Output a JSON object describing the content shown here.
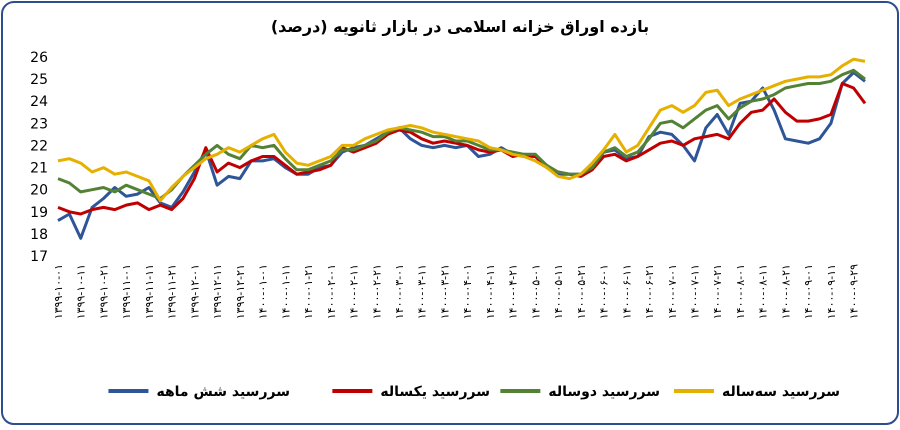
{
  "chart_data": {
    "type": "line",
    "title": "بازده اوراق خزانه اسلامی در بازار ثانویه (درصد)",
    "categories": [
      "۱۳۹۹-۱۰-۰۱",
      null,
      "۱۳۹۹-۱۰-۱۱",
      null,
      "۱۳۹۹-۱۰-۲۱",
      null,
      "۱۳۹۹-۱۱-۰۱",
      null,
      "۱۳۹۹-۱۱-۱۱",
      null,
      "۱۳۹۹-۱۱-۲۱",
      null,
      "۱۳۹۹-۱۲-۰۱",
      null,
      "۱۳۹۹-۱۲-۱۱",
      null,
      "۱۳۹۹-۱۲-۲۱",
      null,
      "۱۴۰۰-۰۱-۰۱",
      null,
      "۱۴۰۰-۰۱-۱۱",
      null,
      "۱۴۰۰-۰۱-۲۱",
      null,
      "۱۴۰۰-۰۲-۰۱",
      null,
      "۱۴۰۰-۰۲-۱۱",
      null,
      "۱۴۰۰-۰۲-۲۱",
      null,
      "۱۴۰۰-۰۳-۰۱",
      null,
      "۱۴۰۰-۰۳-۱۱",
      null,
      "۱۴۰۰-۰۳-۲۱",
      null,
      "۱۴۰۰-۰۴-۰۱",
      null,
      "۱۴۰۰-۰۴-۱۱",
      null,
      "۱۴۰۰-۰۴-۲۱",
      null,
      "۱۴۰۰-۰۵-۰۱",
      null,
      "۱۴۰۰-۰۵-۱۱",
      null,
      "۱۴۰۰-۰۵-۲۱",
      null,
      "۱۴۰۰-۰۶-۰۱",
      null,
      "۱۴۰۰-۰۶-۱۱",
      null,
      "۱۴۰۰-۰۶-۲۱",
      null,
      "۱۴۰۰-۰۷-۰۱",
      null,
      "۱۴۰۰-۰۷-۱۱",
      null,
      "۱۴۰۰-۰۷-۲۱",
      null,
      "۱۴۰۰-۰۸-۰۱",
      null,
      "۱۴۰۰-۰۸-۱۱",
      null,
      "۱۴۰۰-۰۸-۲۱",
      null,
      "۱۴۰۰-۰۹-۰۱",
      null,
      "۱۴۰۰-۰۹-۱۱",
      null,
      "۱۴۰۰-۰۹-۲۹",
      null
    ],
    "series": [
      {
        "name": "سررسید  شش ماهه",
        "color": "#2e5597",
        "values": [
          18.6,
          18.9,
          17.8,
          19.2,
          19.6,
          20.1,
          19.7,
          19.8,
          20.1,
          19.4,
          19.2,
          19.9,
          20.8,
          21.8,
          20.2,
          20.6,
          20.5,
          21.3,
          21.3,
          21.4,
          21.0,
          20.7,
          20.7,
          21.0,
          21.1,
          21.7,
          21.9,
          22.0,
          22.3,
          22.6,
          22.8,
          22.3,
          22.0,
          21.9,
          22.0,
          21.9,
          22.0,
          21.5,
          21.6,
          21.9,
          21.6,
          21.5,
          21.5,
          21.1,
          20.7,
          20.7,
          20.7,
          21.0,
          21.7,
          21.8,
          21.4,
          21.5,
          22.4,
          22.6,
          22.5,
          22.0,
          21.3,
          22.8,
          23.4,
          22.5,
          23.9,
          24.0,
          24.6,
          23.6,
          22.3,
          22.2,
          22.1,
          22.3,
          23.0,
          24.8,
          25.3,
          24.9
        ]
      },
      {
        "name": "سررسید یکساله",
        "color": "#c00000",
        "values": [
          19.2,
          19.0,
          18.9,
          19.1,
          19.2,
          19.1,
          19.3,
          19.4,
          19.1,
          19.3,
          19.1,
          19.6,
          20.5,
          21.9,
          20.8,
          21.2,
          21.0,
          21.3,
          21.5,
          21.5,
          21.1,
          20.7,
          20.8,
          20.9,
          21.1,
          21.9,
          21.7,
          21.9,
          22.1,
          22.5,
          22.7,
          22.6,
          22.3,
          22.1,
          22.2,
          22.1,
          22.0,
          21.8,
          21.7,
          21.8,
          21.5,
          21.6,
          21.5,
          21.0,
          20.8,
          20.7,
          20.6,
          20.9,
          21.5,
          21.6,
          21.3,
          21.5,
          21.8,
          22.1,
          22.2,
          22.0,
          22.3,
          22.4,
          22.5,
          22.3,
          23.0,
          23.5,
          23.6,
          24.1,
          23.5,
          23.1,
          23.1,
          23.2,
          23.4,
          24.8,
          24.6,
          23.9
        ]
      },
      {
        "name": "سررسید دوساله",
        "color": "#548235",
        "values": [
          20.5,
          20.3,
          19.9,
          20.0,
          20.1,
          19.9,
          20.2,
          20.0,
          19.8,
          19.6,
          20.0,
          20.6,
          21.1,
          21.6,
          22.0,
          21.6,
          21.4,
          22.0,
          21.9,
          22.0,
          21.4,
          20.9,
          20.9,
          21.1,
          21.3,
          21.8,
          21.8,
          22.0,
          22.2,
          22.6,
          22.8,
          22.7,
          22.6,
          22.4,
          22.4,
          22.2,
          22.2,
          22.0,
          21.8,
          21.8,
          21.7,
          21.6,
          21.6,
          21.1,
          20.8,
          20.7,
          20.7,
          21.0,
          21.7,
          21.9,
          21.5,
          21.7,
          22.3,
          23.0,
          23.1,
          22.8,
          23.2,
          23.6,
          23.8,
          23.2,
          23.7,
          24.0,
          24.1,
          24.3,
          24.6,
          24.7,
          24.8,
          24.8,
          24.9,
          25.2,
          25.4,
          25.0
        ]
      },
      {
        "name": "سررسید سه‌ساله",
        "color": "#e6b000",
        "values": [
          21.3,
          21.4,
          21.2,
          20.8,
          21.0,
          20.7,
          20.8,
          20.6,
          20.4,
          19.5,
          20.1,
          20.6,
          21.0,
          21.4,
          21.6,
          21.9,
          21.7,
          22.0,
          22.3,
          22.5,
          21.7,
          21.2,
          21.1,
          21.3,
          21.5,
          22.0,
          22.0,
          22.3,
          22.5,
          22.7,
          22.8,
          22.9,
          22.8,
          22.6,
          22.5,
          22.4,
          22.3,
          22.2,
          21.9,
          21.8,
          21.6,
          21.5,
          21.3,
          21.0,
          20.6,
          20.5,
          20.7,
          21.2,
          21.8,
          22.5,
          21.7,
          22.0,
          22.8,
          23.6,
          23.8,
          23.5,
          23.8,
          24.4,
          24.5,
          23.8,
          24.1,
          24.3,
          24.5,
          24.7,
          24.9,
          25.0,
          25.1,
          25.1,
          25.2,
          25.6,
          25.9,
          25.8
        ]
      }
    ],
    "ylim": [
      17,
      26
    ],
    "yticks": [
      17,
      18,
      19,
      20,
      21,
      22,
      23,
      24,
      25,
      26
    ],
    "grid": false,
    "legend": "bottom"
  }
}
